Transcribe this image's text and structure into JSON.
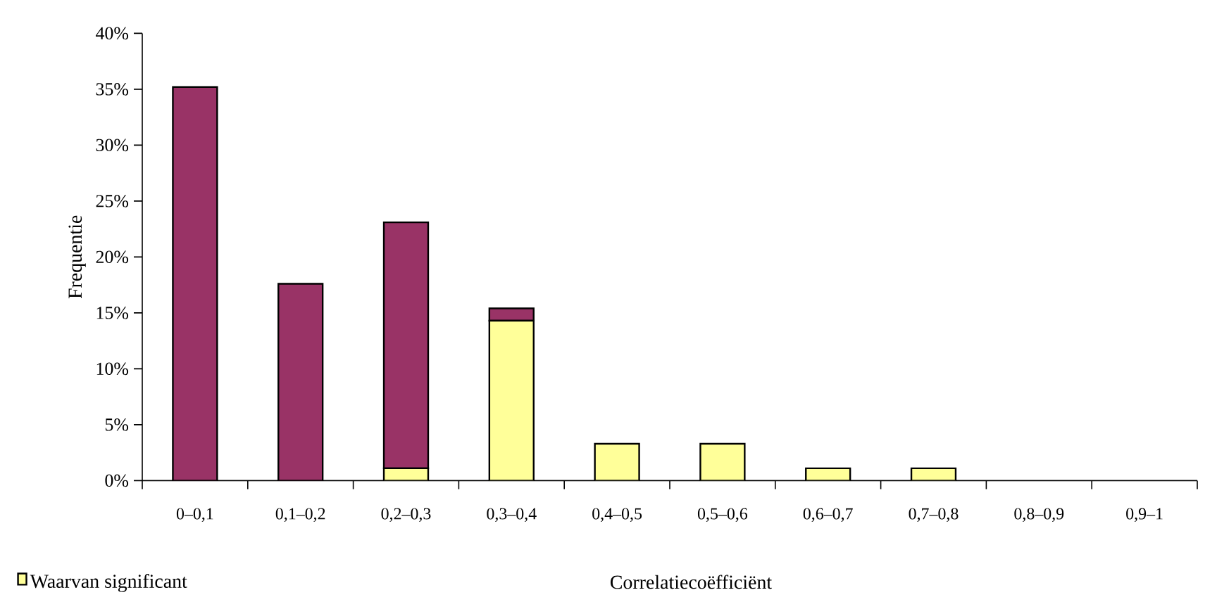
{
  "chart_data": {
    "type": "bar",
    "stacked": true,
    "xlabel": "Correlatiecoëfficiënt",
    "ylabel": "Frequentie",
    "categories": [
      "0–0,1",
      "0,1–0,2",
      "0,2–0,3",
      "0,3–0,4",
      "0,4–0,5",
      "0,5–0,6",
      "0,6–0,7",
      "0,7–0,8",
      "0,8–0,9",
      "0,9–1"
    ],
    "series": [
      {
        "name": "Waarvan significant",
        "color": "#ffff99",
        "values": [
          0,
          0,
          1.1,
          14.3,
          3.3,
          3.3,
          1.1,
          1.1,
          0,
          0
        ]
      },
      {
        "color": "#993366",
        "values": [
          35.2,
          17.6,
          22.0,
          1.1,
          0,
          0,
          0,
          0,
          0,
          0
        ]
      }
    ],
    "ylim": [
      0,
      40
    ],
    "yticks": [
      {
        "value": 0,
        "label": "0%"
      },
      {
        "value": 5,
        "label": "5%"
      },
      {
        "value": 10,
        "label": "10%"
      },
      {
        "value": 15,
        "label": "15%"
      },
      {
        "value": 20,
        "label": "20%"
      },
      {
        "value": 25,
        "label": "25%"
      },
      {
        "value": 30,
        "label": "30%"
      },
      {
        "value": 35,
        "label": "35%"
      },
      {
        "value": 40,
        "label": "40%"
      }
    ],
    "grid": false,
    "legend": "bottom left"
  }
}
